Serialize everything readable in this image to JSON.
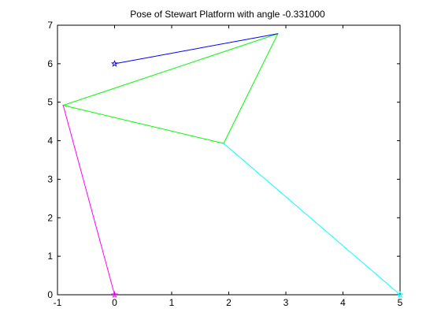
{
  "chart_data": {
    "type": "line",
    "title": "Pose of Stewart Platform with angle -0.331000",
    "xlabel": "",
    "ylabel": "",
    "xlim": [
      -1,
      5
    ],
    "ylim": [
      0,
      7
    ],
    "xticks": [
      -1,
      0,
      1,
      2,
      3,
      4,
      5
    ],
    "yticks": [
      0,
      1,
      2,
      3,
      4,
      5,
      6,
      7
    ],
    "xtick_labels": [
      "-1",
      "0",
      "1",
      "2",
      "3",
      "4",
      "5"
    ],
    "ytick_labels": [
      "0",
      "1",
      "2",
      "3",
      "4",
      "5",
      "6",
      "7"
    ],
    "grid": false,
    "legend": "none",
    "series": [
      {
        "color": "#00ff00",
        "closed": true,
        "marker": "none",
        "points": [
          [
            -0.9,
            4.92
          ],
          [
            2.86,
            6.78
          ],
          [
            1.91,
            3.93
          ]
        ]
      },
      {
        "color": "#0000ff",
        "marker": "star",
        "points": [
          [
            0,
            6.0
          ],
          [
            2.86,
            6.78
          ]
        ]
      },
      {
        "color": "#ff00ff",
        "marker": "star",
        "points": [
          [
            0,
            0
          ],
          [
            -0.9,
            4.92
          ]
        ]
      },
      {
        "color": "#00ffff",
        "marker": "star",
        "points": [
          [
            5,
            0
          ],
          [
            1.91,
            3.93
          ]
        ]
      }
    ],
    "anchor_points": [
      [
        0,
        6.0
      ],
      [
        0,
        0
      ],
      [
        5,
        0
      ]
    ]
  }
}
